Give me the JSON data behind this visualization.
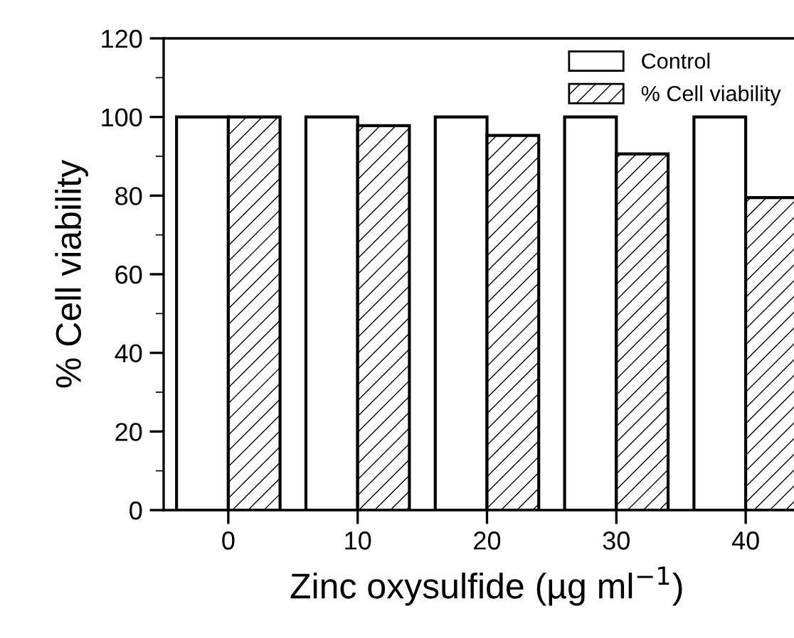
{
  "chart_data": {
    "type": "bar",
    "xlabel": "Zinc oxysulfide (µg ml$^{−1}$)",
    "ylabel": "% Cell viability",
    "categories": [
      "0",
      "10",
      "20",
      "30",
      "40"
    ],
    "series": [
      {
        "name": "Control",
        "color": "#ffffff",
        "values": [
          100,
          100,
          100,
          100,
          100
        ]
      },
      {
        "name": "% Cell viability",
        "color": "#000000",
        "values": [
          100,
          97.8,
          95.3,
          90.6,
          79.5
        ]
      }
    ],
    "ylim": [
      0,
      120
    ],
    "yticks": [
      0,
      20,
      40,
      60,
      80,
      100,
      120
    ],
    "grid": false,
    "legend": "top right"
  }
}
